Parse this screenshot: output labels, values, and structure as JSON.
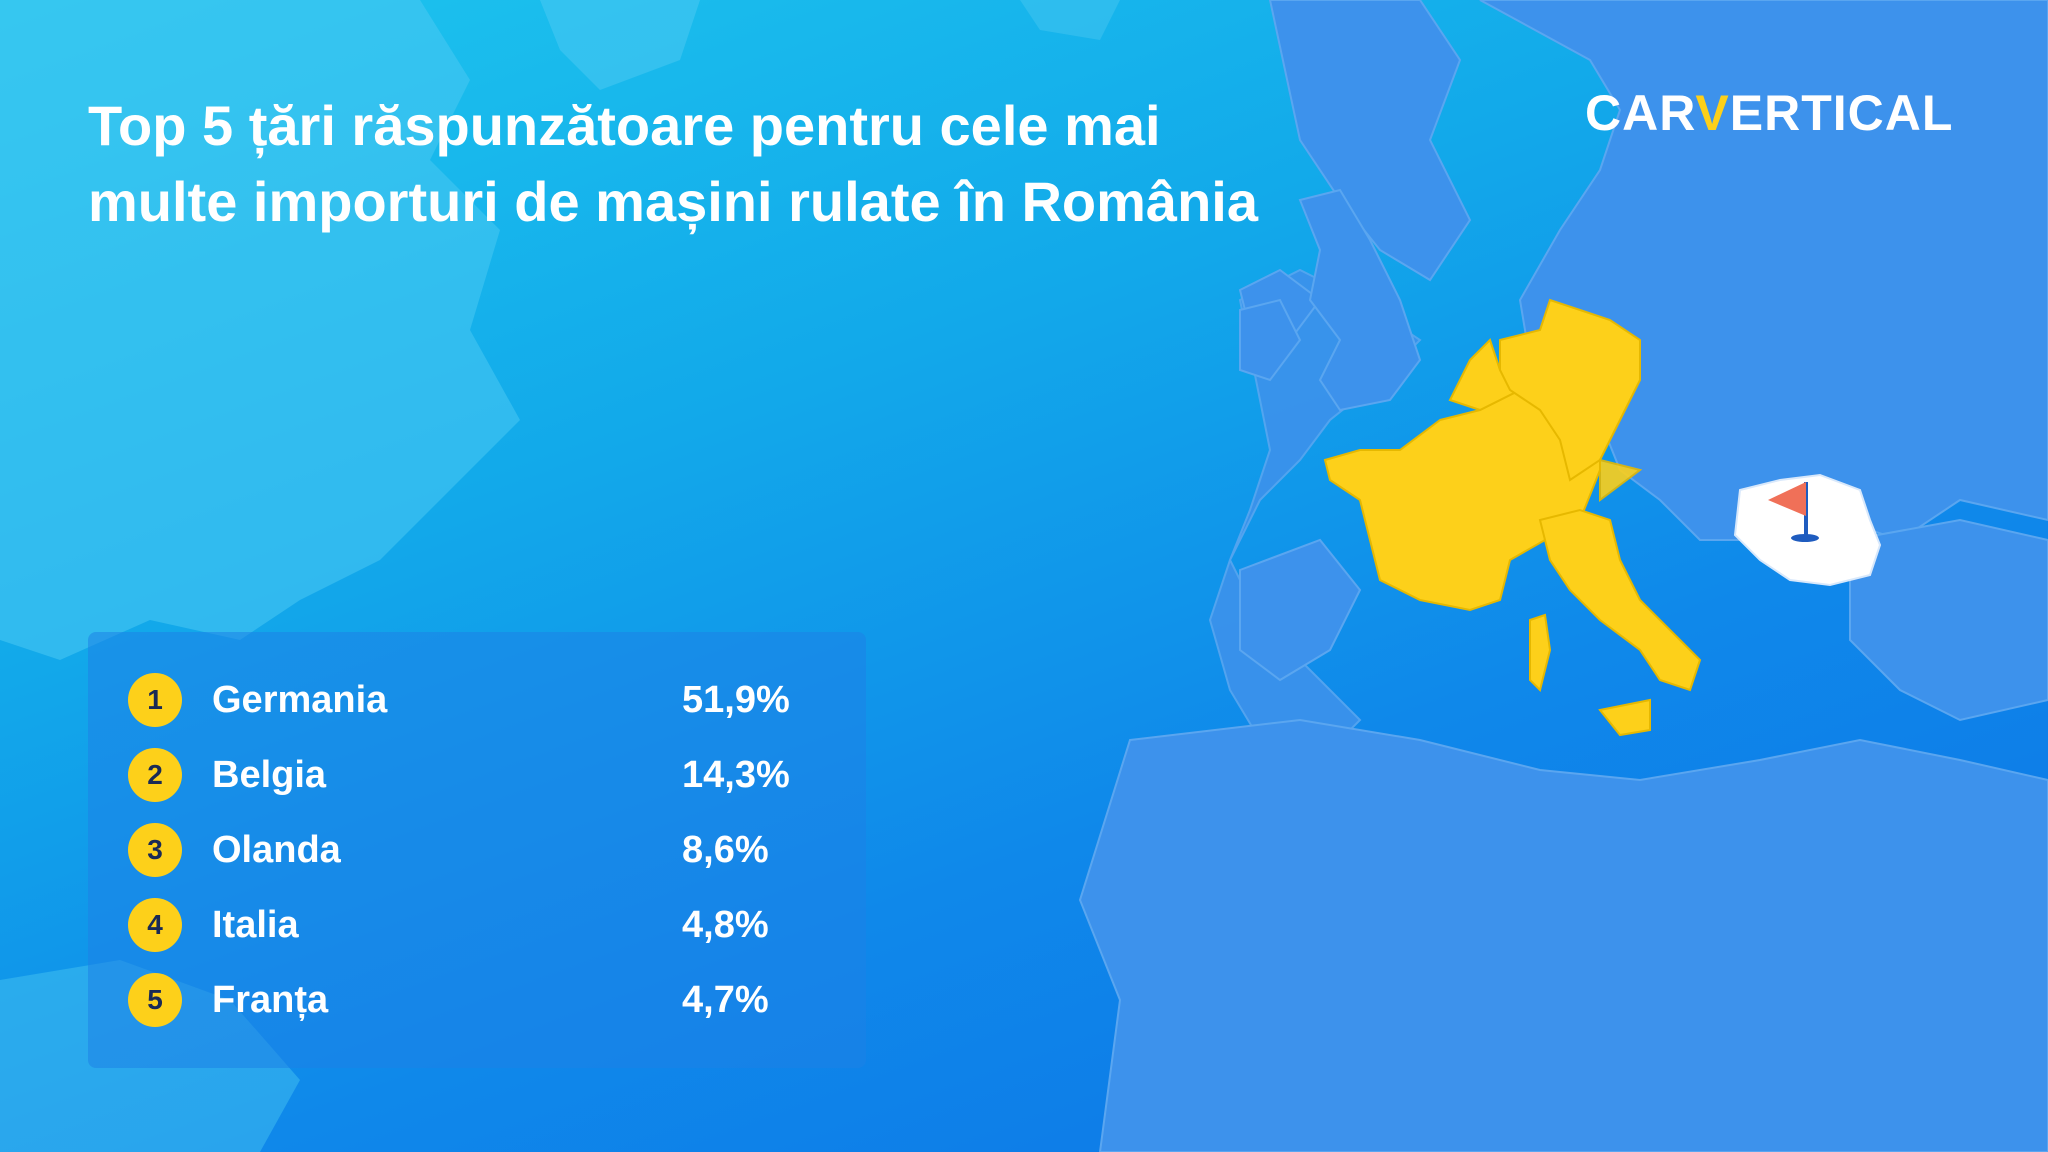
{
  "title_line1": "Top 5 țări răspunzătoare pentru cele mai",
  "title_line2": "multe importuri de mașini rulate în România",
  "brand": {
    "part1": "CAR",
    "part2": "V",
    "part3": "ERTICAL"
  },
  "ranking": [
    {
      "rank": "1",
      "country": "Germania",
      "share": "51,9%"
    },
    {
      "rank": "2",
      "country": "Belgia",
      "share": "14,3%"
    },
    {
      "rank": "3",
      "country": "Olanda",
      "share": "8,6%"
    },
    {
      "rank": "4",
      "country": "Italia",
      "share": "4,8%"
    },
    {
      "rank": "5",
      "country": "Franța",
      "share": "4,7%"
    }
  ],
  "colors": {
    "highlight_countries": "#fdd01a",
    "land": "#3d92ec",
    "destination_country": "#ffffff",
    "flag": "#f07058",
    "flag_pole": "#1f5cbf"
  },
  "map": {
    "highlighted": [
      "Germania",
      "Belgia",
      "Olanda",
      "Italia",
      "Franța"
    ],
    "destination": "România",
    "destination_marker": "flag-icon"
  }
}
